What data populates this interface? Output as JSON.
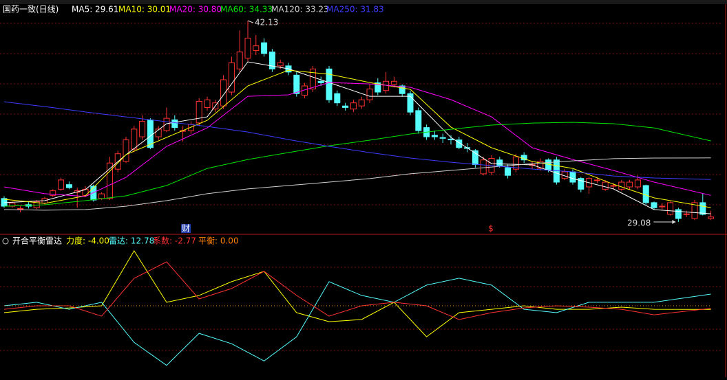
{
  "chart_data": [
    {
      "type": "candlestick",
      "title": "国药一致(日线)",
      "up_color": "#ff3232",
      "down_color": "#54fcfc",
      "ylim": [
        28.32,
        42.58
      ],
      "open": [
        30.6,
        30.1,
        29.95,
        30.2,
        30.0,
        30.3,
        30.8,
        31.2,
        31.5,
        31.0,
        30.8,
        31.4,
        30.6,
        30.6,
        32.5,
        33.0,
        33.8,
        34.6,
        35.7,
        34.6,
        35.0,
        35.7,
        35.0,
        35.0,
        35.5,
        36.5,
        36.4,
        36.6,
        37.5,
        39.0,
        39.7,
        40.2,
        40.7,
        40.1,
        39.2,
        39.2,
        38.6,
        37.3,
        37.7,
        38.2,
        39.0,
        37.4,
        36.6,
        36.4,
        36.6,
        37.0,
        38.1,
        37.6,
        38.0,
        37.9,
        37.4,
        36.3,
        35.2,
        34.7,
        34.55,
        34.45,
        34.4,
        33.9,
        33.7,
        32.2,
        32.3,
        33.1,
        32.6,
        32.5,
        33.4,
        32.8,
        32.55,
        33.1,
        33.1,
        31.9,
        32.33,
        31.9,
        31.35,
        31.8,
        31.2,
        31.44,
        31.2,
        31.35,
        31.35,
        31.44,
        30.33,
        30.1,
        29.57,
        29.88,
        29.6,
        29.3,
        30.33,
        29.3
      ],
      "high": [
        30.75,
        30.4,
        30.1,
        30.4,
        30.5,
        30.7,
        31.2,
        31.95,
        31.7,
        31.3,
        31.4,
        31.5,
        31.0,
        33.3,
        33.7,
        34.6,
        35.3,
        36.0,
        35.8,
        35.3,
        36.5,
        36.0,
        35.3,
        35.6,
        37.1,
        37.2,
        37.0,
        38.6,
        39.8,
        41.5,
        42.13,
        41.2,
        41.0,
        40.3,
        39.6,
        39.4,
        38.8,
        38.1,
        39.2,
        38.5,
        39.2,
        37.6,
        36.8,
        37.0,
        37.2,
        38.0,
        38.4,
        38.8,
        38.5,
        38.0,
        37.6,
        36.5,
        35.4,
        35.0,
        34.8,
        34.7,
        34.6,
        34.2,
        33.8,
        33.3,
        33.4,
        33.3,
        32.8,
        33.5,
        33.6,
        33.0,
        33.2,
        33.2,
        33.3,
        32.5,
        32.5,
        32.0,
        32.0,
        32.0,
        31.8,
        31.6,
        31.8,
        31.8,
        32.1,
        31.5,
        30.4,
        30.3,
        30.4,
        30.0,
        29.8,
        30.5,
        30.9,
        29.8
      ],
      "low": [
        30.0,
        30.0,
        29.7,
        29.95,
        29.9,
        30.2,
        30.7,
        31.1,
        31.2,
        30.0,
        30.7,
        30.4,
        30.5,
        30.5,
        32.3,
        32.9,
        33.6,
        34.4,
        33.8,
        34.4,
        34.9,
        35.0,
        34.3,
        34.8,
        35.3,
        36.3,
        36.2,
        36.4,
        37.3,
        38.8,
        39.5,
        39.9,
        39.8,
        38.8,
        39.0,
        38.6,
        37.2,
        37.1,
        37.5,
        37.9,
        36.8,
        36.6,
        36.3,
        36.2,
        36.4,
        36.8,
        37.3,
        37.4,
        37.8,
        37.2,
        36.0,
        34.8,
        34.4,
        34.4,
        34.2,
        34.1,
        33.8,
        33.6,
        32.6,
        32.1,
        32.1,
        32.6,
        31.9,
        32.3,
        32.9,
        32.5,
        32.4,
        32.3,
        31.5,
        31.8,
        31.5,
        31.0,
        30.9,
        31.6,
        31.1,
        31.2,
        31.1,
        31.2,
        31.2,
        30.2,
        29.9,
        29.9,
        29.5,
        29.08,
        29.4,
        29.2,
        29.5,
        29.2
      ],
      "close": [
        30.1,
        30.3,
        29.95,
        30.1,
        30.4,
        30.6,
        31.1,
        31.8,
        31.3,
        31.1,
        31.2,
        30.5,
        30.9,
        32.9,
        33.5,
        34.4,
        35.1,
        35.6,
        33.9,
        35.1,
        35.8,
        35.2,
        35.0,
        35.4,
        36.9,
        37.0,
        36.8,
        38.3,
        39.4,
        40.1,
        41.0,
        40.5,
        40.0,
        39.0,
        39.4,
        38.8,
        37.4,
        37.9,
        39.0,
        38.1,
        37.0,
        36.8,
        36.5,
        36.8,
        37.0,
        37.7,
        37.5,
        38.2,
        38.2,
        37.4,
        36.2,
        35.0,
        34.6,
        34.6,
        34.5,
        34.4,
        33.9,
        33.85,
        32.8,
        33.1,
        33.2,
        32.7,
        32.1,
        33.3,
        33.1,
        32.8,
        33.0,
        32.45,
        31.66,
        32.33,
        31.66,
        31.2,
        31.9,
        31.8,
        31.66,
        31.44,
        31.66,
        31.66,
        31.8,
        30.33,
        30.0,
        30.1,
        30.33,
        29.3,
        29.6,
        30.33,
        29.57,
        29.4
      ],
      "series": [
        {
          "name": "MA5: 29.61",
          "color": "#ffffff",
          "x": [
            0,
            5,
            10,
            15,
            20,
            25,
            30,
            35,
            40,
            45,
            50,
            55,
            60,
            65,
            70,
            75,
            80,
            87
          ],
          "values": [
            30.33,
            30.46,
            31.17,
            33.44,
            35.45,
            35.89,
            39.46,
            39.01,
            38.12,
            37.23,
            37.23,
            34.56,
            32.86,
            32.78,
            31.89,
            31.22,
            29.88,
            29.61
          ]
        },
        {
          "name": "MA10: 30.01",
          "color": "#ffff00",
          "x": [
            0,
            5,
            10,
            15,
            20,
            25,
            30,
            35,
            40,
            45,
            50,
            55,
            60,
            65,
            70,
            75,
            80,
            87
          ],
          "values": [
            30.55,
            30.28,
            30.77,
            33.44,
            34.56,
            35.67,
            37.9,
            38.92,
            38.66,
            38.12,
            37.68,
            35.23,
            33.89,
            33.0,
            32.55,
            31.53,
            30.64,
            30.01
          ]
        },
        {
          "name": "MA20: 30.80",
          "color": "#ff00ff",
          "x": [
            0,
            5,
            10,
            15,
            20,
            25,
            30,
            35,
            40,
            45,
            50,
            55,
            60,
            65,
            70,
            75,
            80,
            87
          ],
          "values": [
            31.35,
            30.91,
            30.73,
            31.97,
            33.98,
            35.18,
            37.23,
            37.32,
            38.12,
            38.03,
            37.81,
            37.01,
            35.89,
            33.89,
            33.13,
            32.42,
            31.66,
            30.8
          ]
        },
        {
          "name": "MA60: 34.33",
          "color": "#00e600",
          "x": [
            0,
            5,
            10,
            15,
            20,
            25,
            30,
            35,
            40,
            45,
            50,
            55,
            60,
            65,
            70,
            75,
            80,
            87
          ],
          "values": [
            30.1,
            30.19,
            30.46,
            30.77,
            31.44,
            32.55,
            33.13,
            33.58,
            34.02,
            34.38,
            34.78,
            35.09,
            35.36,
            35.49,
            35.54,
            35.45,
            35.18,
            34.33
          ]
        },
        {
          "name": "MA120: 33.23",
          "color": "#d0d0d0",
          "x": [
            0,
            5,
            10,
            15,
            20,
            25,
            30,
            35,
            40,
            45,
            50,
            55,
            60,
            65,
            70,
            75,
            80,
            87
          ],
          "values": [
            29.88,
            29.84,
            29.88,
            30.1,
            30.46,
            30.91,
            31.22,
            31.44,
            31.66,
            31.89,
            32.2,
            32.42,
            32.64,
            32.86,
            33.04,
            33.18,
            33.22,
            33.23
          ]
        },
        {
          "name": "MA250: 31.83",
          "color": "#3c3cff",
          "x": [
            0,
            5,
            10,
            15,
            20,
            25,
            30,
            35,
            40,
            45,
            50,
            55,
            60,
            65,
            70,
            75,
            80,
            87
          ],
          "values": [
            36.87,
            36.56,
            36.21,
            35.89,
            35.58,
            35.27,
            34.91,
            34.42,
            33.98,
            33.58,
            33.22,
            32.95,
            32.73,
            32.51,
            32.33,
            32.06,
            31.93,
            31.83
          ]
        }
      ],
      "annotations": [
        {
          "text": "42.13"
        },
        {
          "text": "29.08"
        },
        {
          "text": "财"
        },
        {
          "text": "$"
        }
      ]
    },
    {
      "type": "line",
      "title": "开合平衡雷达",
      "ylim": [
        -78,
        75
      ],
      "series": [
        {
          "name": "力度: -4.00",
          "color": "#ffff00",
          "x": [
            0,
            4,
            8,
            12,
            16,
            20,
            24,
            28,
            32,
            36,
            40,
            44,
            48,
            52,
            56,
            60,
            64,
            68,
            72,
            76,
            80,
            87
          ],
          "values": [
            -7.5,
            -3.8,
            -2.3,
            0,
            60,
            3.8,
            11.3,
            26.3,
            37.6,
            -7.5,
            -17.3,
            -15.0,
            3.8,
            -33.8,
            -7.5,
            -3.8,
            0,
            -3.8,
            -3.8,
            -1.5,
            -3.8,
            -4.0
          ]
        },
        {
          "name": "雷达: 12.78",
          "color": "#54fcfc",
          "x": [
            0,
            4,
            8,
            12,
            16,
            20,
            24,
            28,
            32,
            36,
            40,
            44,
            48,
            52,
            56,
            60,
            64,
            68,
            72,
            76,
            80,
            87
          ],
          "values": [
            0,
            3.8,
            -3.8,
            3.8,
            -40,
            -65,
            -30.1,
            -41.4,
            -60.2,
            -33.8,
            26.3,
            11.3,
            3.8,
            22.6,
            30.1,
            22.6,
            -3.8,
            -7.5,
            3.8,
            3.8,
            3.8,
            12.78
          ]
        },
        {
          "name": "系数: -2.77",
          "color": "#ff3232",
          "x": [
            0,
            4,
            8,
            12,
            16,
            20,
            24,
            28,
            32,
            36,
            40,
            44,
            48,
            52,
            56,
            60,
            64,
            68,
            72,
            76,
            80,
            87
          ],
          "values": [
            -3.8,
            0,
            0,
            -11.3,
            30,
            48,
            7.5,
            18.8,
            37.6,
            11.3,
            -11.3,
            0,
            3.8,
            0,
            -15.0,
            -7.5,
            -2.3,
            0,
            -1.5,
            -3.8,
            -9.8,
            -2.77
          ]
        },
        {
          "name": "平衡: 0.00",
          "color": "#ff8000",
          "dashed": true,
          "x": [
            0,
            87
          ],
          "values": [
            0,
            0
          ]
        }
      ]
    }
  ]
}
